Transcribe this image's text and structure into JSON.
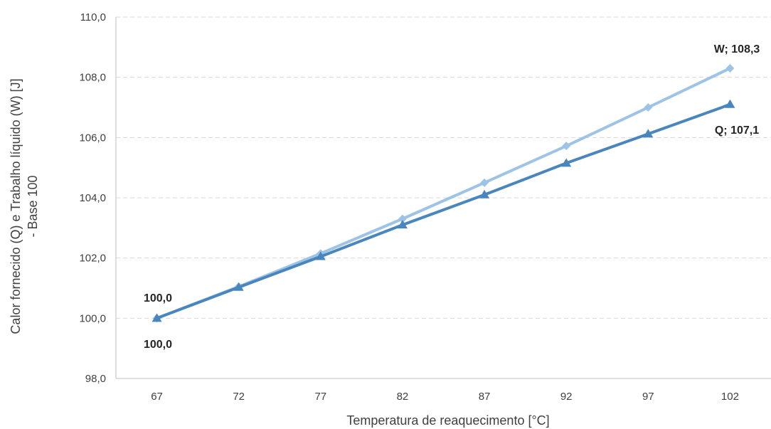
{
  "chart_data": {
    "type": "line",
    "x": [
      67,
      72,
      77,
      82,
      87,
      92,
      97,
      102
    ],
    "xlabel": "Temperatura de reaquecimento [°C]",
    "ylabel": [
      "Calor fornecido (Q) e Trabalho líquido (W) [J]",
      "- Base 100"
    ],
    "ylim": [
      98.0,
      110.0
    ],
    "yticks": [
      "98,0",
      "100,0",
      "102,0",
      "104,0",
      "106,0",
      "108,0",
      "110,0"
    ],
    "xticks": [
      "67",
      "72",
      "77",
      "82",
      "87",
      "92",
      "97",
      "102"
    ],
    "grid": "horizontal dashed",
    "series": [
      {
        "name": "W",
        "marker": "diamond",
        "color": "#9DC3E6",
        "values": [
          100.0,
          101.05,
          102.15,
          103.3,
          104.5,
          105.72,
          107.0,
          108.3
        ]
      },
      {
        "name": "Q",
        "marker": "triangle",
        "color": "#4A86BE",
        "values": [
          100.0,
          101.03,
          102.05,
          103.1,
          104.1,
          105.15,
          106.12,
          107.1
        ]
      }
    ],
    "annotations": {
      "w_start": "100,0",
      "q_start": "100,0",
      "w_end": "W; 108,3",
      "q_end": "Q; 107,1"
    }
  }
}
